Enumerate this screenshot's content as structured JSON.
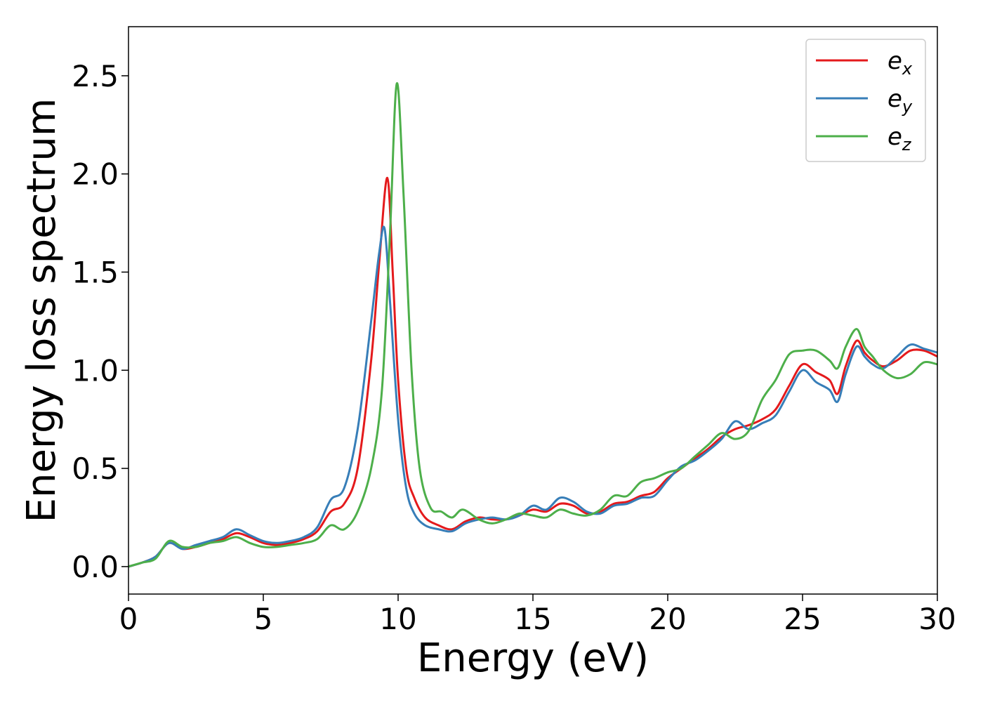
{
  "chart_data": {
    "type": "line",
    "title": "",
    "xlabel": "Energy (eV)",
    "ylabel": "Energy loss spectrum",
    "xlim": [
      0,
      30
    ],
    "ylim": [
      -0.14,
      2.75
    ],
    "xticks": [
      0,
      5,
      10,
      15,
      20,
      25,
      30
    ],
    "xtick_labels": [
      "0",
      "5",
      "10",
      "15",
      "20",
      "25",
      "30"
    ],
    "yticks": [
      0.0,
      0.5,
      1.0,
      1.5,
      2.0,
      2.5
    ],
    "ytick_labels": [
      "0.0",
      "0.5",
      "1.0",
      "1.5",
      "2.0",
      "2.5"
    ],
    "grid": false,
    "legend_position": "top-right",
    "series": [
      {
        "name": "e_x",
        "label_base": "e",
        "label_sub": "x",
        "color": "#e41a1c",
        "points": [
          [
            0.0,
            0.0
          ],
          [
            0.5,
            0.02
          ],
          [
            1.0,
            0.05
          ],
          [
            1.5,
            0.12
          ],
          [
            2.0,
            0.09
          ],
          [
            2.5,
            0.1
          ],
          [
            3.0,
            0.12
          ],
          [
            3.5,
            0.14
          ],
          [
            4.0,
            0.17
          ],
          [
            4.5,
            0.15
          ],
          [
            5.0,
            0.12
          ],
          [
            5.5,
            0.11
          ],
          [
            6.0,
            0.12
          ],
          [
            6.5,
            0.14
          ],
          [
            7.0,
            0.18
          ],
          [
            7.5,
            0.28
          ],
          [
            8.0,
            0.32
          ],
          [
            8.5,
            0.5
          ],
          [
            9.0,
            1.05
          ],
          [
            9.3,
            1.55
          ],
          [
            9.6,
            1.98
          ],
          [
            9.8,
            1.5
          ],
          [
            10.0,
            0.95
          ],
          [
            10.3,
            0.5
          ],
          [
            10.6,
            0.35
          ],
          [
            11.0,
            0.25
          ],
          [
            11.5,
            0.21
          ],
          [
            12.0,
            0.19
          ],
          [
            12.5,
            0.23
          ],
          [
            13.0,
            0.25
          ],
          [
            13.5,
            0.24
          ],
          [
            14.0,
            0.24
          ],
          [
            14.5,
            0.26
          ],
          [
            15.0,
            0.29
          ],
          [
            15.5,
            0.28
          ],
          [
            16.0,
            0.32
          ],
          [
            16.5,
            0.31
          ],
          [
            17.0,
            0.27
          ],
          [
            17.5,
            0.28
          ],
          [
            18.0,
            0.32
          ],
          [
            18.5,
            0.33
          ],
          [
            19.0,
            0.36
          ],
          [
            19.5,
            0.38
          ],
          [
            20.0,
            0.45
          ],
          [
            20.5,
            0.5
          ],
          [
            21.0,
            0.55
          ],
          [
            21.5,
            0.6
          ],
          [
            22.0,
            0.66
          ],
          [
            22.5,
            0.7
          ],
          [
            23.0,
            0.72
          ],
          [
            23.5,
            0.75
          ],
          [
            24.0,
            0.8
          ],
          [
            24.5,
            0.92
          ],
          [
            25.0,
            1.03
          ],
          [
            25.5,
            0.99
          ],
          [
            26.0,
            0.95
          ],
          [
            26.3,
            0.88
          ],
          [
            26.6,
            1.02
          ],
          [
            27.0,
            1.15
          ],
          [
            27.3,
            1.09
          ],
          [
            27.6,
            1.05
          ],
          [
            28.0,
            1.02
          ],
          [
            28.5,
            1.05
          ],
          [
            29.0,
            1.1
          ],
          [
            29.5,
            1.1
          ],
          [
            30.0,
            1.07
          ]
        ]
      },
      {
        "name": "e_y",
        "label_base": "e",
        "label_sub": "y",
        "color": "#377eb8",
        "points": [
          [
            0.0,
            0.0
          ],
          [
            0.5,
            0.02
          ],
          [
            1.0,
            0.05
          ],
          [
            1.5,
            0.12
          ],
          [
            2.0,
            0.09
          ],
          [
            2.5,
            0.11
          ],
          [
            3.0,
            0.13
          ],
          [
            3.5,
            0.15
          ],
          [
            4.0,
            0.19
          ],
          [
            4.5,
            0.16
          ],
          [
            5.0,
            0.13
          ],
          [
            5.5,
            0.12
          ],
          [
            6.0,
            0.13
          ],
          [
            6.5,
            0.15
          ],
          [
            7.0,
            0.2
          ],
          [
            7.5,
            0.34
          ],
          [
            8.0,
            0.4
          ],
          [
            8.5,
            0.7
          ],
          [
            9.0,
            1.25
          ],
          [
            9.3,
            1.6
          ],
          [
            9.5,
            1.72
          ],
          [
            9.7,
            1.35
          ],
          [
            10.0,
            0.75
          ],
          [
            10.3,
            0.4
          ],
          [
            10.6,
            0.27
          ],
          [
            11.0,
            0.21
          ],
          [
            11.5,
            0.19
          ],
          [
            12.0,
            0.18
          ],
          [
            12.5,
            0.22
          ],
          [
            13.0,
            0.24
          ],
          [
            13.5,
            0.25
          ],
          [
            14.0,
            0.24
          ],
          [
            14.5,
            0.26
          ],
          [
            15.0,
            0.31
          ],
          [
            15.5,
            0.29
          ],
          [
            16.0,
            0.35
          ],
          [
            16.5,
            0.33
          ],
          [
            17.0,
            0.28
          ],
          [
            17.5,
            0.27
          ],
          [
            18.0,
            0.31
          ],
          [
            18.5,
            0.32
          ],
          [
            19.0,
            0.35
          ],
          [
            19.5,
            0.36
          ],
          [
            20.0,
            0.44
          ],
          [
            20.5,
            0.51
          ],
          [
            21.0,
            0.54
          ],
          [
            21.5,
            0.59
          ],
          [
            22.0,
            0.65
          ],
          [
            22.5,
            0.74
          ],
          [
            23.0,
            0.7
          ],
          [
            23.5,
            0.73
          ],
          [
            24.0,
            0.77
          ],
          [
            24.5,
            0.89
          ],
          [
            25.0,
            1.0
          ],
          [
            25.5,
            0.94
          ],
          [
            26.0,
            0.9
          ],
          [
            26.3,
            0.84
          ],
          [
            26.6,
            0.98
          ],
          [
            27.0,
            1.12
          ],
          [
            27.3,
            1.07
          ],
          [
            27.6,
            1.03
          ],
          [
            28.0,
            1.01
          ],
          [
            28.5,
            1.07
          ],
          [
            29.0,
            1.13
          ],
          [
            29.5,
            1.11
          ],
          [
            30.0,
            1.09
          ]
        ]
      },
      {
        "name": "e_z",
        "label_base": "e",
        "label_sub": "z",
        "color": "#4daf4a",
        "points": [
          [
            0.0,
            0.0
          ],
          [
            0.5,
            0.02
          ],
          [
            1.0,
            0.04
          ],
          [
            1.5,
            0.13
          ],
          [
            2.0,
            0.1
          ],
          [
            2.5,
            0.1
          ],
          [
            3.0,
            0.12
          ],
          [
            3.5,
            0.13
          ],
          [
            4.0,
            0.15
          ],
          [
            4.5,
            0.12
          ],
          [
            5.0,
            0.1
          ],
          [
            5.5,
            0.1
          ],
          [
            6.0,
            0.11
          ],
          [
            6.5,
            0.12
          ],
          [
            7.0,
            0.14
          ],
          [
            7.5,
            0.21
          ],
          [
            8.0,
            0.19
          ],
          [
            8.5,
            0.28
          ],
          [
            9.0,
            0.5
          ],
          [
            9.4,
            0.9
          ],
          [
            9.7,
            1.7
          ],
          [
            9.95,
            2.46
          ],
          [
            10.2,
            1.9
          ],
          [
            10.5,
            1.0
          ],
          [
            10.8,
            0.5
          ],
          [
            11.2,
            0.3
          ],
          [
            11.6,
            0.28
          ],
          [
            12.0,
            0.25
          ],
          [
            12.4,
            0.29
          ],
          [
            13.0,
            0.24
          ],
          [
            13.5,
            0.22
          ],
          [
            14.0,
            0.24
          ],
          [
            14.5,
            0.27
          ],
          [
            15.0,
            0.26
          ],
          [
            15.5,
            0.25
          ],
          [
            16.0,
            0.29
          ],
          [
            16.5,
            0.27
          ],
          [
            17.0,
            0.26
          ],
          [
            17.5,
            0.29
          ],
          [
            18.0,
            0.36
          ],
          [
            18.5,
            0.36
          ],
          [
            19.0,
            0.43
          ],
          [
            19.5,
            0.45
          ],
          [
            20.0,
            0.48
          ],
          [
            20.5,
            0.5
          ],
          [
            21.0,
            0.56
          ],
          [
            21.5,
            0.62
          ],
          [
            22.0,
            0.68
          ],
          [
            22.5,
            0.65
          ],
          [
            23.0,
            0.69
          ],
          [
            23.5,
            0.85
          ],
          [
            24.0,
            0.95
          ],
          [
            24.5,
            1.08
          ],
          [
            25.0,
            1.1
          ],
          [
            25.5,
            1.1
          ],
          [
            26.0,
            1.05
          ],
          [
            26.3,
            1.01
          ],
          [
            26.6,
            1.12
          ],
          [
            27.0,
            1.21
          ],
          [
            27.3,
            1.12
          ],
          [
            27.6,
            1.07
          ],
          [
            28.0,
            1.0
          ],
          [
            28.5,
            0.96
          ],
          [
            29.0,
            0.98
          ],
          [
            29.5,
            1.04
          ],
          [
            30.0,
            1.03
          ]
        ]
      }
    ]
  }
}
